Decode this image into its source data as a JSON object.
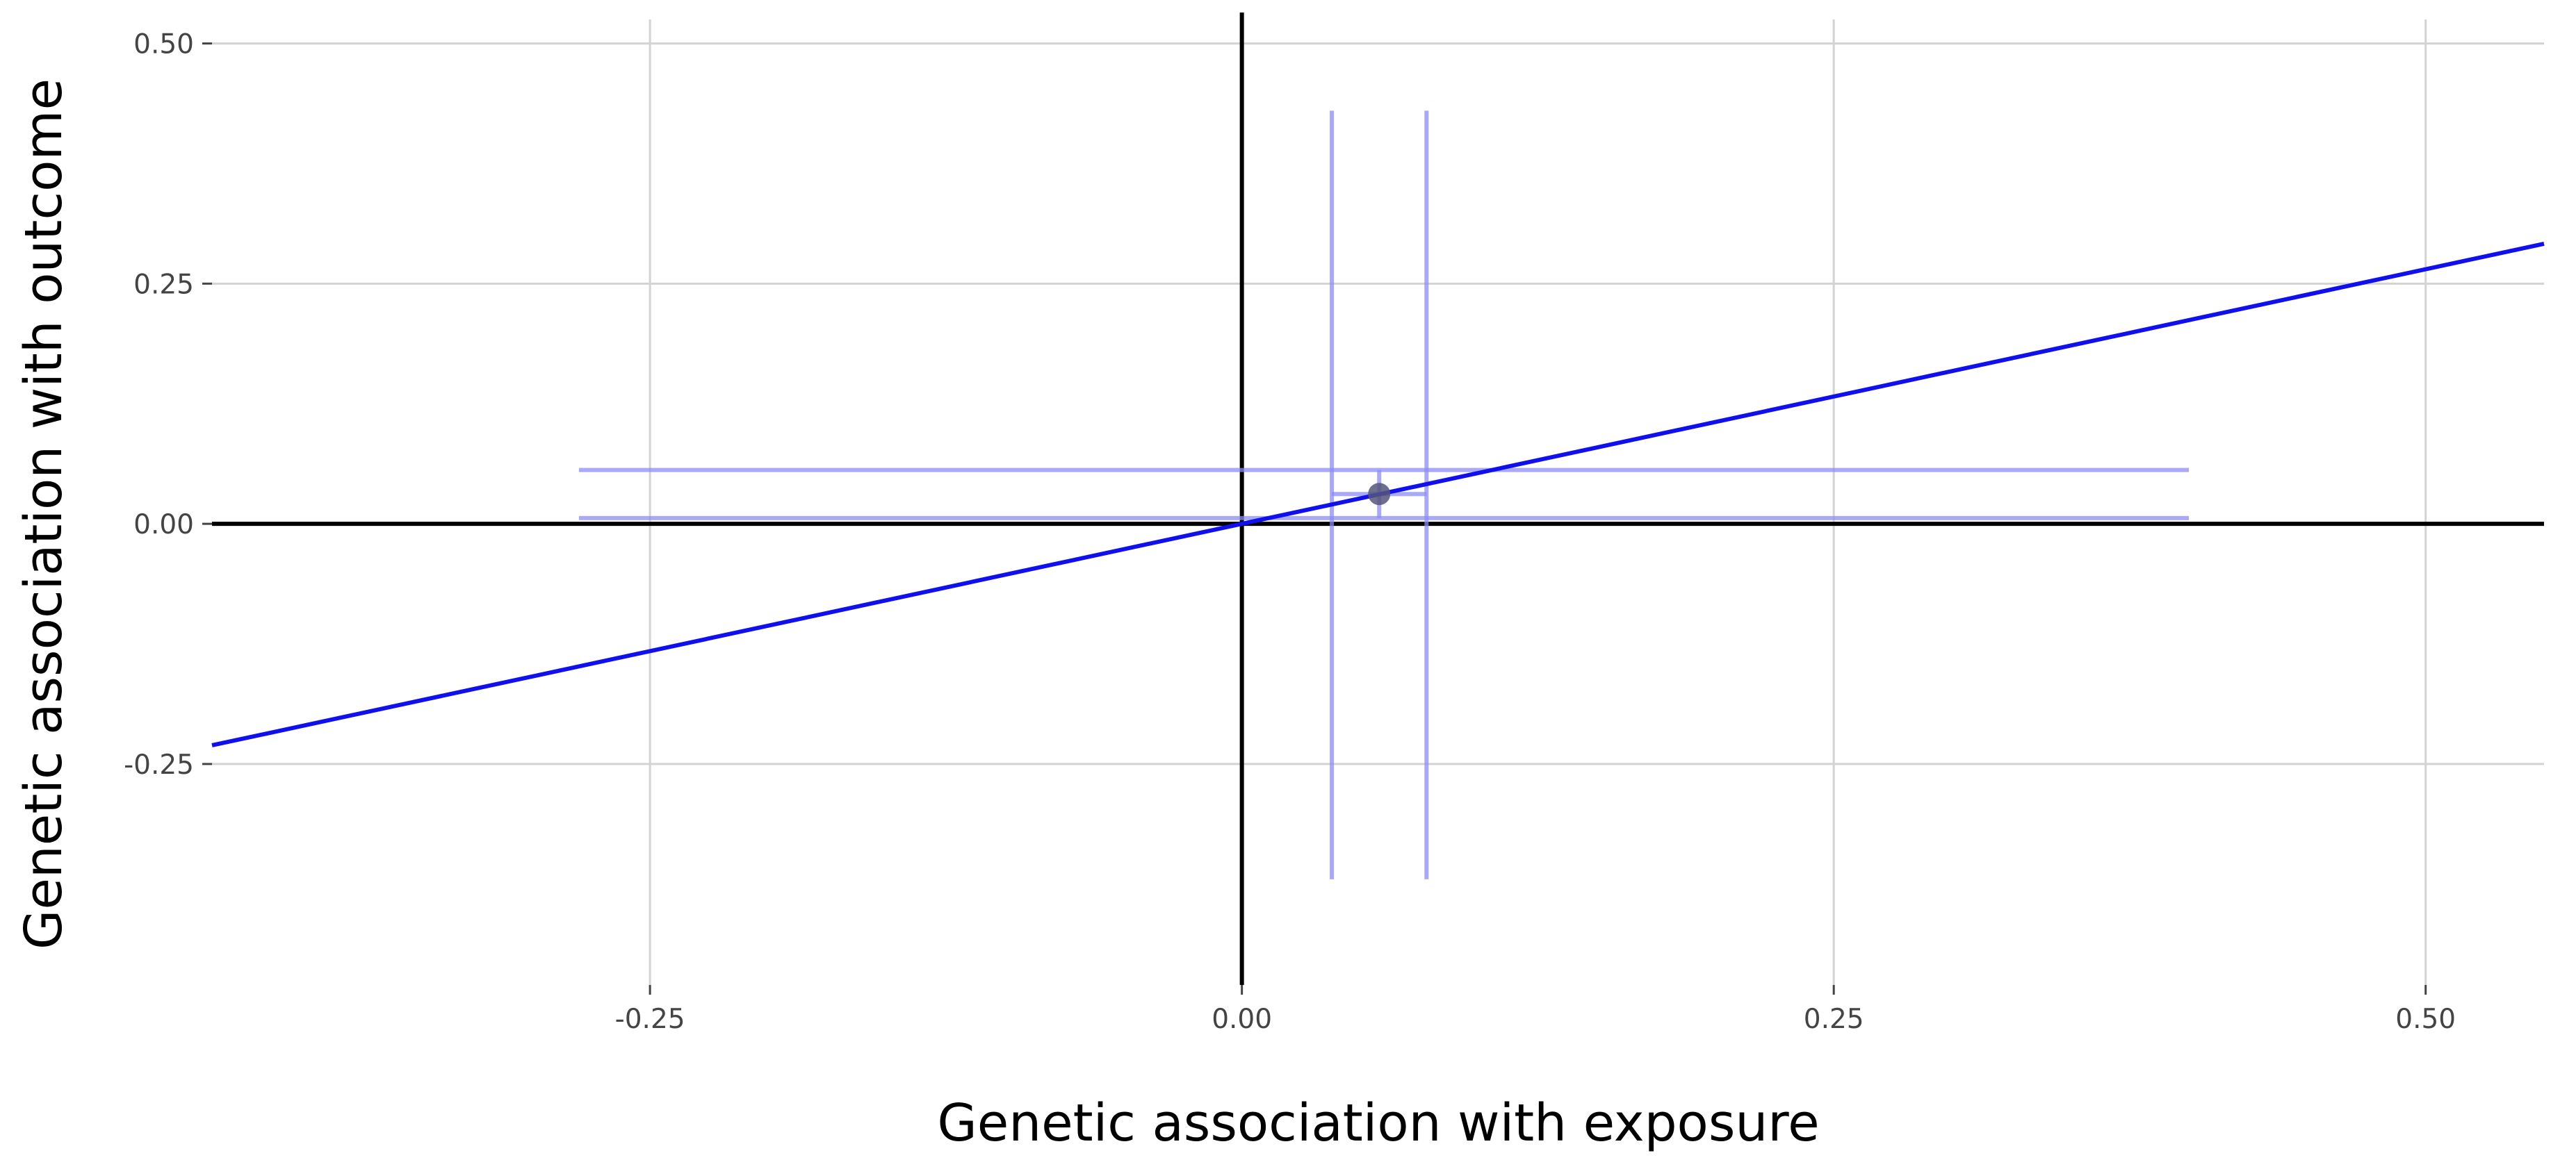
{
  "chart_data": {
    "type": "scatter",
    "xlabel": "Genetic association with exposure",
    "ylabel": "Genetic association with outcome",
    "xlim": [
      -0.435,
      0.55
    ],
    "ylim": [
      -0.48,
      0.525
    ],
    "x_ticks": [
      -0.25,
      0.0,
      0.25,
      0.5
    ],
    "x_tick_labels": [
      "-0.25",
      "0.00",
      "0.25",
      "0.50"
    ],
    "y_ticks": [
      -0.25,
      0.0,
      0.25,
      0.5
    ],
    "y_tick_labels": [
      "-0.25",
      "0.00",
      "0.25",
      "0.50"
    ],
    "grid": true,
    "zero_lines": true,
    "points": [
      {
        "x": 0.058,
        "y": 0.031,
        "x_se_inner": [
          0.038,
          0.078
        ],
        "x_ci_outer": [
          -0.28,
          0.4
        ],
        "y_se_inner": [
          0.006,
          0.056
        ],
        "y_ci_outer": [
          -0.37,
          0.43
        ]
      }
    ],
    "fit_line": {
      "intercept": 0.0,
      "slope": 0.53
    },
    "colors": {
      "line": "#1010ee",
      "errorbar": "#8c8cf5",
      "point": "#55557a",
      "axis_zero": "#000000",
      "grid": "#d3d3d3"
    }
  }
}
